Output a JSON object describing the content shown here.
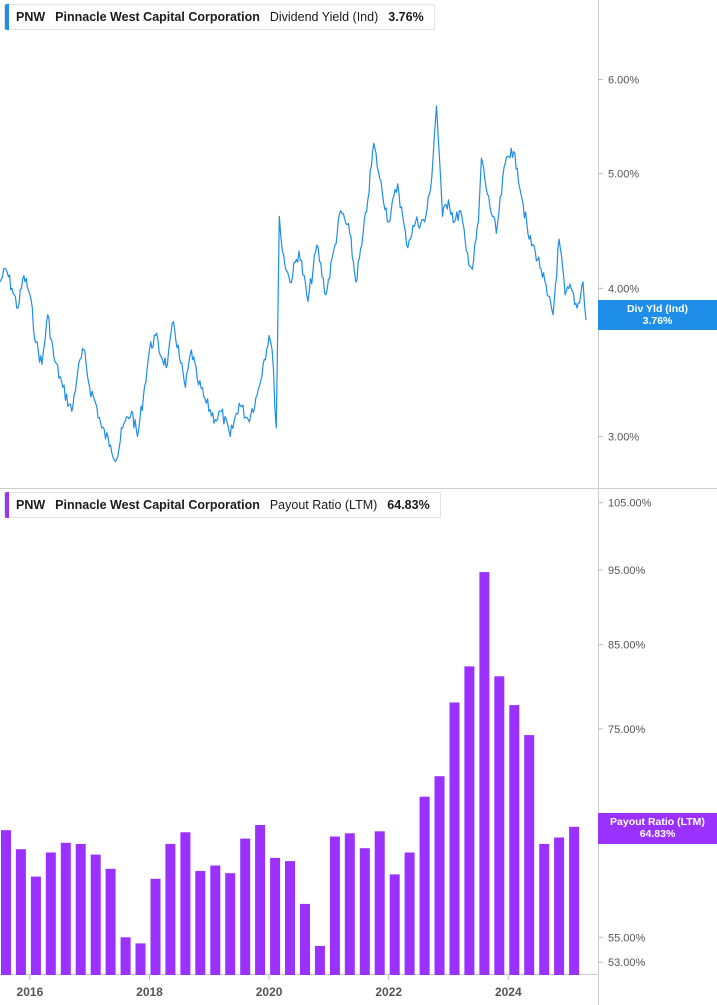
{
  "top_panel": {
    "legend": {
      "ticker": "PNW",
      "company": "Pinnacle West Capital Corporation",
      "metric": "Dividend Yield (Ind)",
      "value": "3.76%"
    },
    "tag": {
      "name": "Div Yld (Ind)",
      "value": "3.76%"
    },
    "color": "#1f8ee8"
  },
  "bottom_panel": {
    "legend": {
      "ticker": "PNW",
      "company": "Pinnacle West Capital Corporation",
      "metric": "Payout Ratio (LTM)",
      "value": "64.83%"
    },
    "tag": {
      "name": "Payout Ratio (LTM)",
      "value": "64.83%"
    },
    "color": "#9a31ff"
  },
  "chart_data": [
    {
      "type": "line",
      "series": [
        {
          "name": "Dividend Yield (Ind)"
        }
      ],
      "y_scale": "log",
      "ylim": [
        2.72,
        7.0
      ],
      "xlim": [
        2015.5,
        2025.5
      ],
      "y_ticks": [
        {
          "value": 6.0,
          "label": "6.00%"
        },
        {
          "value": 5.0,
          "label": "5.00%"
        },
        {
          "value": 4.0,
          "label": "4.00%"
        },
        {
          "value": 3.0,
          "label": "3.00%"
        }
      ],
      "x": [
        2015.5,
        2015.6,
        2015.7,
        2015.8,
        2015.9,
        2016.0,
        2016.1,
        2016.2,
        2016.3,
        2016.4,
        2016.55,
        2016.7,
        2016.8,
        2016.9,
        2017.0,
        2017.1,
        2017.2,
        2017.35,
        2017.45,
        2017.55,
        2017.7,
        2017.8,
        2017.9,
        2018.0,
        2018.1,
        2018.2,
        2018.3,
        2018.4,
        2018.5,
        2018.6,
        2018.7,
        2018.8,
        2018.95,
        2019.1,
        2019.2,
        2019.35,
        2019.5,
        2019.65,
        2019.8,
        2019.9,
        2020.0,
        2020.05,
        2020.12,
        2020.17,
        2020.22,
        2020.35,
        2020.5,
        2020.65,
        2020.8,
        2020.95,
        2021.1,
        2021.2,
        2021.35,
        2021.45,
        2021.55,
        2021.65,
        2021.75,
        2021.85,
        2022.0,
        2022.15,
        2022.3,
        2022.45,
        2022.6,
        2022.7,
        2022.8,
        2022.85,
        2022.9,
        2023.0,
        2023.1,
        2023.2,
        2023.3,
        2023.4,
        2023.5,
        2023.55,
        2023.65,
        2023.8,
        2023.95,
        2024.05,
        2024.15,
        2024.25,
        2024.35,
        2024.45,
        2024.55,
        2024.65,
        2024.75,
        2024.85,
        2024.95,
        2025.05,
        2025.15,
        2025.25,
        2025.3
      ],
      "y": [
        4.05,
        4.15,
        4.0,
        3.85,
        4.1,
        3.95,
        3.6,
        3.45,
        3.8,
        3.5,
        3.3,
        3.15,
        3.4,
        3.55,
        3.3,
        3.2,
        3.05,
        2.95,
        2.87,
        3.05,
        3.15,
        3.0,
        3.25,
        3.55,
        3.65,
        3.5,
        3.45,
        3.75,
        3.5,
        3.3,
        3.55,
        3.35,
        3.2,
        3.1,
        3.15,
        3.0,
        3.2,
        3.1,
        3.25,
        3.45,
        3.65,
        3.55,
        3.05,
        4.6,
        4.3,
        4.05,
        4.3,
        3.9,
        4.35,
        3.95,
        4.35,
        4.65,
        4.45,
        4.05,
        4.35,
        4.75,
        5.3,
        4.95,
        4.55,
        4.9,
        4.35,
        4.55,
        4.55,
        4.85,
        5.7,
        5.15,
        4.6,
        4.75,
        4.55,
        4.65,
        4.3,
        4.15,
        4.55,
        5.15,
        4.8,
        4.45,
        5.1,
        5.25,
        5.05,
        4.7,
        4.4,
        4.3,
        4.15,
        3.95,
        3.8,
        4.4,
        3.95,
        4.0,
        3.85,
        4.05,
        3.76
      ]
    },
    {
      "type": "bar",
      "series": [
        {
          "name": "Payout Ratio (LTM)"
        }
      ],
      "y_scale": "log",
      "ylim": [
        52.0,
        107.0
      ],
      "xlim": [
        2015.5,
        2025.5
      ],
      "y_ticks": [
        {
          "value": 105.0,
          "label": "105.00%"
        },
        {
          "value": 95.0,
          "label": "95.00%"
        },
        {
          "value": 85.0,
          "label": "85.00%"
        },
        {
          "value": 75.0,
          "label": "75.00%"
        },
        {
          "value": 55.0,
          "label": "55.00%"
        },
        {
          "value": 53.0,
          "label": "53.00%"
        }
      ],
      "x_ticks": [
        {
          "value": 2016.0,
          "label": "2016"
        },
        {
          "value": 2018.0,
          "label": "2018"
        },
        {
          "value": 2020.0,
          "label": "2020"
        },
        {
          "value": 2022.0,
          "label": "2022"
        },
        {
          "value": 2024.0,
          "label": "2024"
        }
      ],
      "x": [
        2015.6,
        2015.85,
        2016.1,
        2016.35,
        2016.6,
        2016.85,
        2017.1,
        2017.35,
        2017.6,
        2017.85,
        2018.1,
        2018.35,
        2018.6,
        2018.85,
        2019.1,
        2019.35,
        2019.6,
        2019.85,
        2020.1,
        2020.35,
        2020.6,
        2020.85,
        2021.1,
        2021.35,
        2021.6,
        2021.85,
        2022.1,
        2022.35,
        2022.6,
        2022.85,
        2023.1,
        2023.35,
        2023.6,
        2023.85,
        2024.1,
        2024.35,
        2024.6,
        2024.85,
        2025.1
      ],
      "values": [
        64.5,
        62.7,
        60.2,
        62.4,
        63.3,
        63.2,
        62.2,
        60.9,
        55.0,
        54.5,
        60.0,
        63.2,
        64.3,
        60.7,
        61.2,
        60.5,
        63.7,
        65.0,
        61.9,
        61.6,
        57.8,
        54.3,
        63.9,
        64.2,
        62.8,
        64.4,
        60.4,
        62.4,
        67.8,
        69.9,
        78.0,
        82.3,
        94.7,
        81.1,
        77.7,
        74.3,
        63.2,
        63.8,
        64.83
      ]
    }
  ]
}
